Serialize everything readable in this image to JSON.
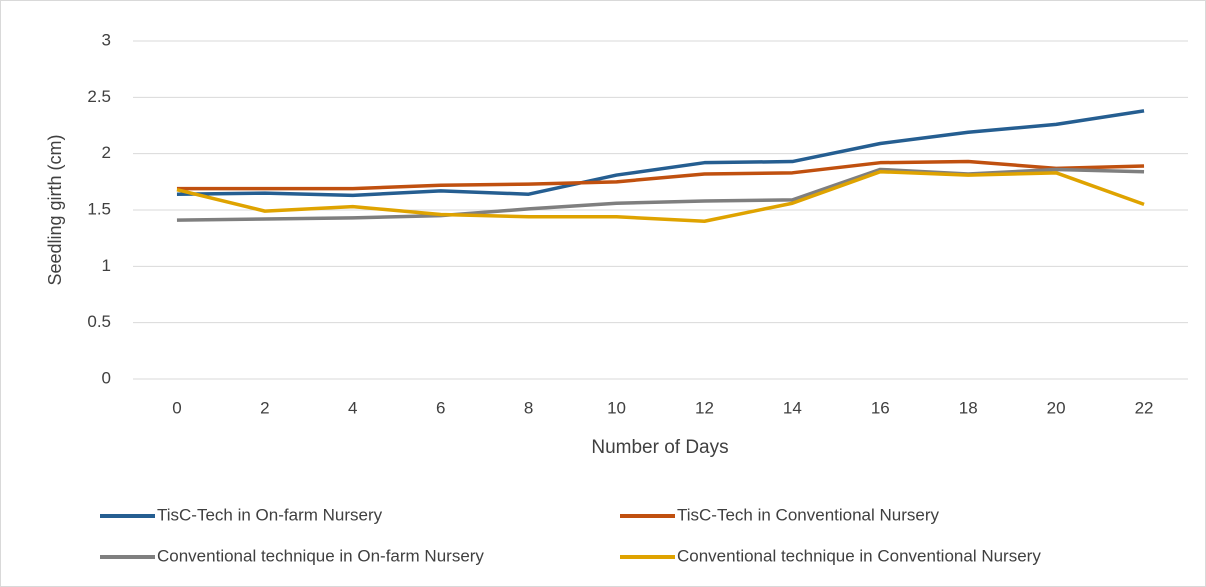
{
  "chart_data": {
    "type": "line",
    "x_label": "Number of Days",
    "y_label": "Seedling girth (cm)",
    "categories": [
      "0",
      "2",
      "4",
      "6",
      "8",
      "10",
      "12",
      "14",
      "16",
      "18",
      "20",
      "22"
    ],
    "series": [
      {
        "name": "TisC-Tech in On-farm Nursery",
        "color": "#255e91",
        "values": [
          1.64,
          1.65,
          1.63,
          1.67,
          1.64,
          1.81,
          1.92,
          1.93,
          2.09,
          2.19,
          2.26,
          2.38
        ]
      },
      {
        "name": "TisC-Tech in Conventional Nursery",
        "color": "#c0500f",
        "values": [
          1.69,
          1.69,
          1.69,
          1.72,
          1.73,
          1.75,
          1.82,
          1.83,
          1.92,
          1.93,
          1.87,
          1.89
        ]
      },
      {
        "name": "Conventional technique in On-farm Nursery",
        "color": "#7f7f7f",
        "values": [
          1.41,
          1.42,
          1.43,
          1.45,
          1.51,
          1.56,
          1.58,
          1.59,
          1.86,
          1.82,
          1.86,
          1.84
        ]
      },
      {
        "name": "Conventional technique in Conventional Nursery",
        "color": "#dfa300",
        "values": [
          1.68,
          1.49,
          1.53,
          1.46,
          1.44,
          1.44,
          1.4,
          1.56,
          1.84,
          1.81,
          1.83,
          1.55
        ]
      }
    ],
    "ylim": [
      0,
      3
    ],
    "yticks": [
      0,
      0.5,
      1,
      1.5,
      2,
      2.5,
      3
    ],
    "grid": true,
    "legend": "bottom"
  }
}
